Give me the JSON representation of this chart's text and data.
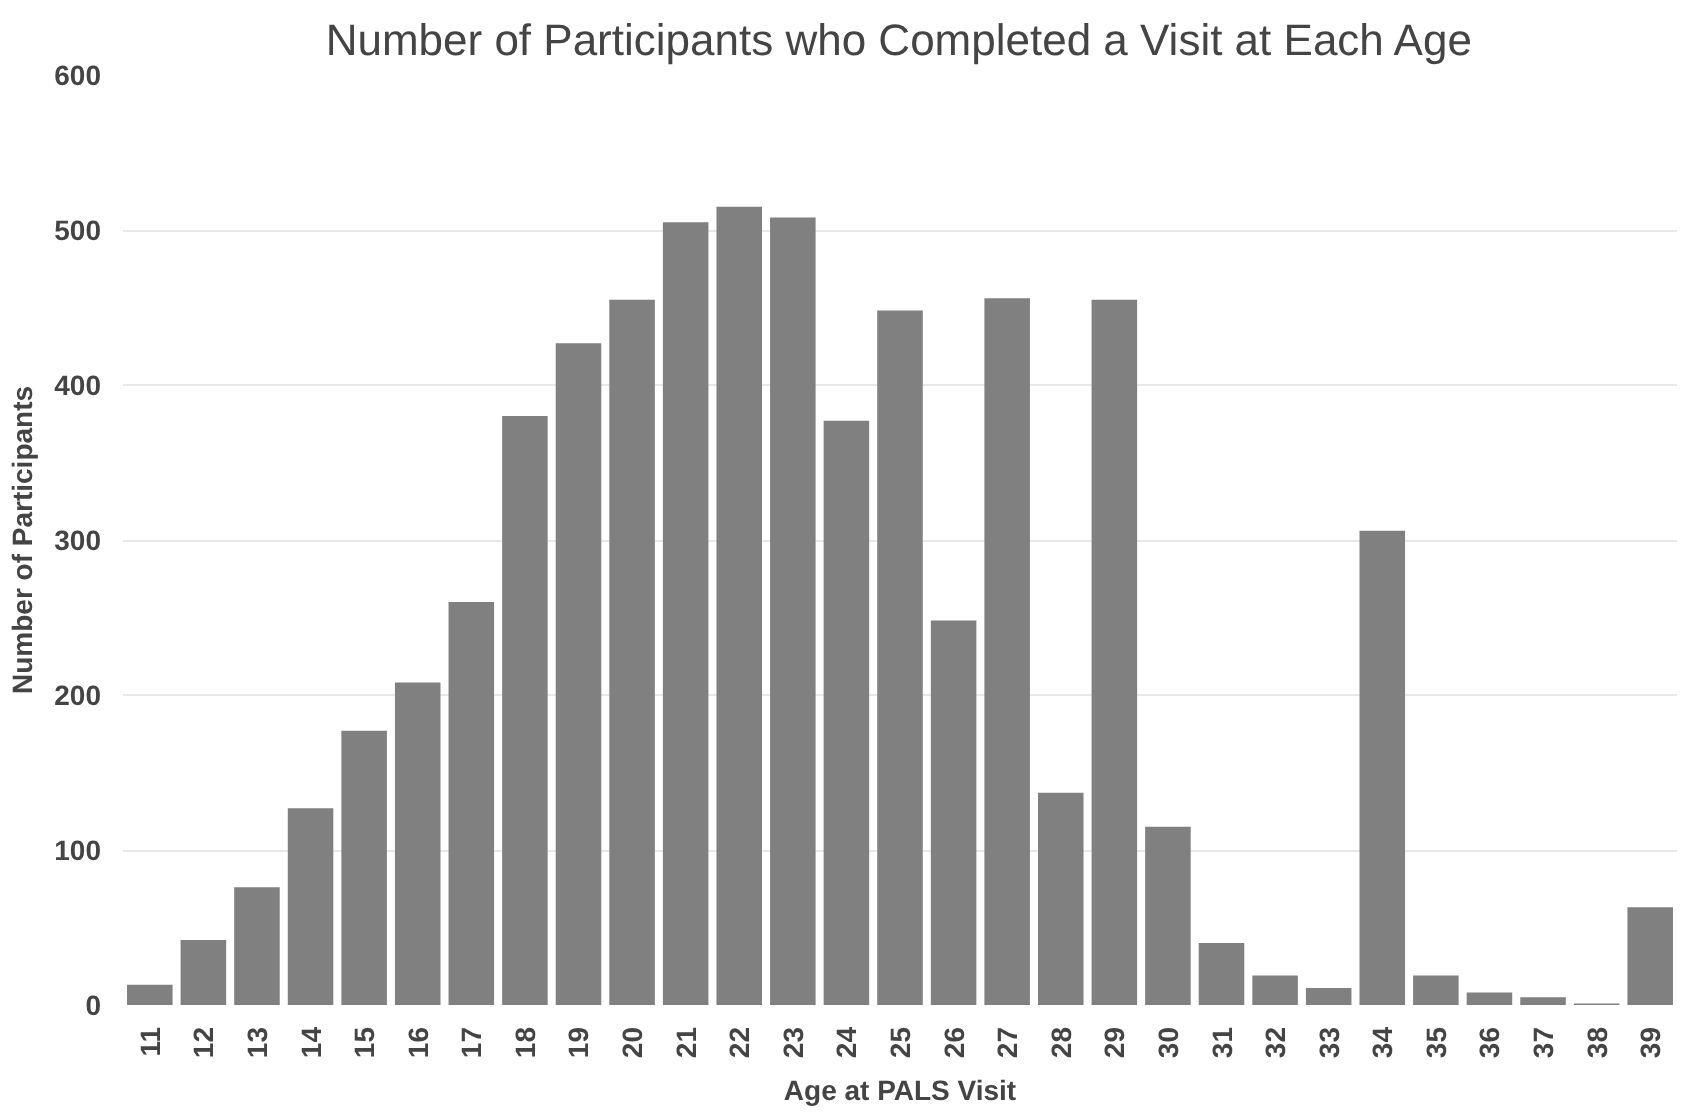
{
  "chart_data": {
    "type": "bar",
    "title": "Number of Participants who Completed a Visit at Each Age",
    "xlabel": "Age at PALS Visit",
    "ylabel": "Number of Participants",
    "categories": [
      "11",
      "12",
      "13",
      "14",
      "15",
      "16",
      "17",
      "18",
      "19",
      "20",
      "21",
      "22",
      "23",
      "24",
      "25",
      "26",
      "27",
      "28",
      "29",
      "30",
      "31",
      "32",
      "33",
      "34",
      "35",
      "36",
      "37",
      "38",
      "39"
    ],
    "values": [
      13,
      42,
      76,
      127,
      177,
      208,
      260,
      380,
      427,
      455,
      505,
      515,
      508,
      377,
      448,
      248,
      456,
      137,
      455,
      115,
      40,
      19,
      11,
      306,
      19,
      8,
      5,
      1,
      63
    ],
    "color": "#808080",
    "ylim": [
      0,
      600
    ],
    "yticks": [
      0,
      100,
      200,
      300,
      400,
      500,
      600
    ],
    "grid": "y"
  }
}
